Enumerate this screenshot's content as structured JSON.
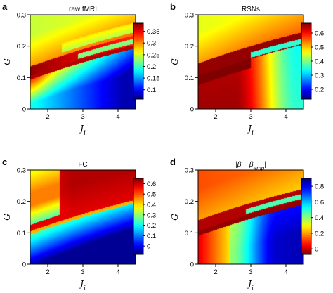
{
  "chart_data": [
    {
      "type": "heatmap",
      "panel": "a",
      "title": "raw fMRI",
      "xlabel": "J",
      "xlabel_sub": "i",
      "ylabel": "G",
      "xlim": [
        1.5,
        4.5
      ],
      "ylim": [
        0,
        0.3
      ],
      "xticks": [
        "2",
        "3",
        "4"
      ],
      "yticks": [
        "0",
        "0.1",
        "0.2",
        "0.3"
      ],
      "colormap": "jet",
      "colorbar": {
        "min": 0.06,
        "max": 0.385,
        "ticks": [
          "0.1",
          "0.15",
          "0.2",
          "0.25",
          "0.3",
          "0.35"
        ],
        "tick_values": [
          0.1,
          0.15,
          0.2,
          0.25,
          0.3,
          0.35
        ]
      },
      "pattern": "a"
    },
    {
      "type": "heatmap",
      "panel": "b",
      "title": "RSNs",
      "xlabel": "J",
      "xlabel_sub": "i",
      "ylabel": "G",
      "xlim": [
        1.5,
        4.5
      ],
      "ylim": [
        0,
        0.3
      ],
      "xticks": [
        "2",
        "3",
        "4"
      ],
      "yticks": [
        "0",
        "0.1",
        "0.2",
        "0.3"
      ],
      "colormap": "jet",
      "colorbar": {
        "min": 0.13,
        "max": 0.67,
        "ticks": [
          "0.2",
          "0.3",
          "0.4",
          "0.5",
          "0.6"
        ],
        "tick_values": [
          0.2,
          0.3,
          0.4,
          0.5,
          0.6
        ]
      },
      "pattern": "b"
    },
    {
      "type": "heatmap",
      "panel": "c",
      "title": "FC",
      "xlabel": "J",
      "xlabel_sub": "i",
      "ylabel": "G",
      "xlim": [
        1.5,
        4.5
      ],
      "ylim": [
        0,
        0.3
      ],
      "xticks": [
        "2",
        "3",
        "4"
      ],
      "yticks": [
        "0",
        "0.1",
        "0.2",
        "0.3"
      ],
      "colormap": "jet",
      "colorbar": {
        "min": -0.08,
        "max": 0.65,
        "ticks": [
          "0",
          "0.1",
          "0.2",
          "0.3",
          "0.4",
          "0.5",
          "0.6"
        ],
        "tick_values": [
          0,
          0.1,
          0.2,
          0.3,
          0.4,
          0.5,
          0.6
        ]
      },
      "pattern": "c"
    },
    {
      "type": "heatmap",
      "panel": "d",
      "title": "|β − β",
      "title_sub": "emp",
      "title_end": "|",
      "xlabel": "J",
      "xlabel_sub": "i",
      "ylabel": "G",
      "xlim": [
        1.5,
        4.5
      ],
      "ylim": [
        0,
        0.3
      ],
      "xticks": [
        "2",
        "3",
        "4"
      ],
      "yticks": [
        "0",
        "0.1",
        "0.2",
        "0.3"
      ],
      "colormap": "jet_reversed",
      "colorbar": {
        "min": -0.07,
        "max": 0.9,
        "ticks": [
          "0",
          "0.2",
          "0.4",
          "0.6",
          "0.8"
        ],
        "tick_values": [
          0,
          0.2,
          0.4,
          0.6,
          0.8
        ]
      },
      "pattern": "d"
    }
  ]
}
